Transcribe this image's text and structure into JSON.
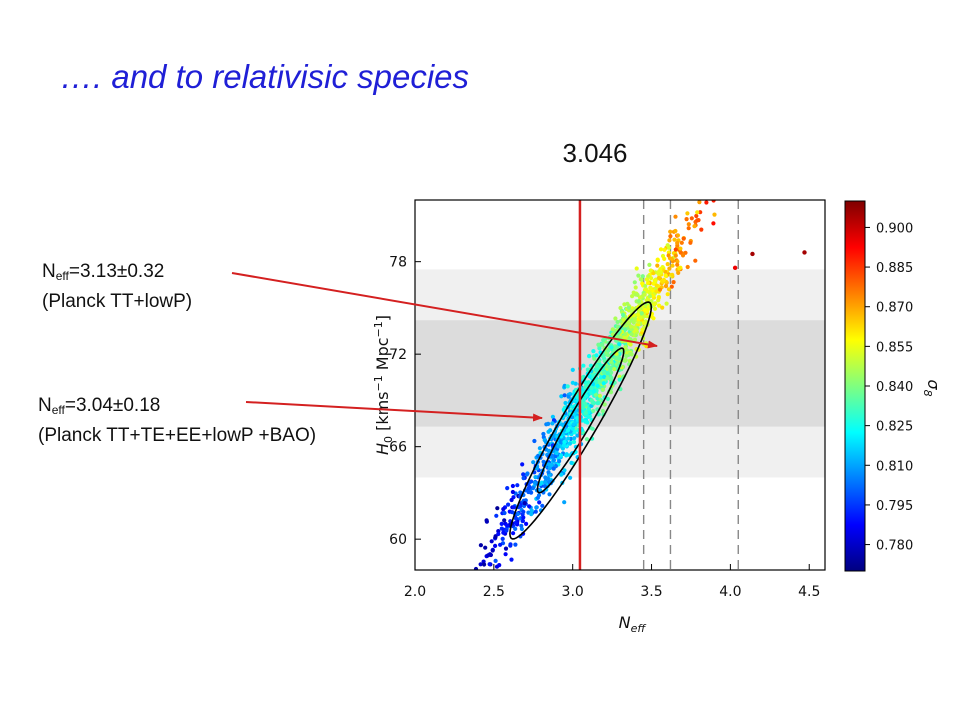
{
  "slide": {
    "title": "…. and to relativisic species",
    "caption": "3.046"
  },
  "annotations": [
    {
      "symbol": "N",
      "subscript": "eff",
      "value": "=3.13±0.32",
      "label": "(Planck TT+lowP)"
    },
    {
      "symbol": "N",
      "subscript": "eff",
      "value": "=3.04±0.18",
      "label": "(Planck TT+TE+EE+lowP +BAO)"
    }
  ],
  "colors": {
    "title": "#1f1fd6",
    "vertical_line": "#d42020",
    "arrow": "#d42020",
    "band_outer": "#f0f0f0",
    "band_inner": "#dcdcdc",
    "contour": "#000000",
    "dashed_lines": "#888888"
  },
  "chart_data": {
    "type": "scatter",
    "xlabel": "N_eff",
    "ylabel": "H_0 [kms^-1 Mpc^-1]",
    "xlim": [
      2.0,
      4.6
    ],
    "ylim": [
      58,
      82
    ],
    "x_ticks": [
      2.0,
      2.5,
      3.0,
      3.5,
      4.0,
      4.5
    ],
    "x_tick_labels": [
      "2.0",
      "2.5",
      "3.0",
      "3.5",
      "4.0",
      "4.5"
    ],
    "y_ticks": [
      60,
      66,
      72,
      78
    ],
    "y_tick_labels": [
      "60",
      "66",
      "72",
      "78"
    ],
    "colorbar": {
      "label": "σ8",
      "range": [
        0.77,
        0.91
      ],
      "ticks": [
        0.78,
        0.795,
        0.81,
        0.825,
        0.84,
        0.855,
        0.87,
        0.885,
        0.9
      ],
      "tick_labels": [
        "0.780",
        "0.795",
        "0.810",
        "0.825",
        "0.840",
        "0.855",
        "0.870",
        "0.885",
        "0.900"
      ]
    },
    "bands": [
      {
        "y_range": [
          64.0,
          77.5
        ],
        "shade": "light"
      },
      {
        "y_range": [
          67.3,
          74.2
        ],
        "shade": "dark"
      }
    ],
    "vertical_line": {
      "x": 3.046
    },
    "dashed_lines": [
      3.45,
      3.62,
      4.05
    ],
    "sample_cloud": {
      "x_mean": 3.13,
      "x_sd": 0.32,
      "y_intercept": 18.5,
      "y_slope": 16.4,
      "y_scatter_sd": 1.1,
      "sigma8_intercept": 0.6,
      "sigma8_slope": 0.073
    },
    "contours": [
      {
        "x_center": 3.05,
        "y_center": 67.7,
        "x_sd": 0.18,
        "slope": 16.4,
        "scatter_sd": 0.9,
        "level_sigma": 1
      },
      {
        "x_center": 3.05,
        "y_center": 67.7,
        "x_sd": 0.18,
        "slope": 16.4,
        "scatter_sd": 0.9,
        "level_sigma": 2
      }
    ],
    "outliers": [
      {
        "x": 4.14,
        "y": 78.5,
        "sigma8": 0.905
      },
      {
        "x": 4.47,
        "y": 78.6,
        "sigma8": 0.905
      },
      {
        "x": 4.03,
        "y": 77.6,
        "sigma8": 0.895
      }
    ]
  }
}
